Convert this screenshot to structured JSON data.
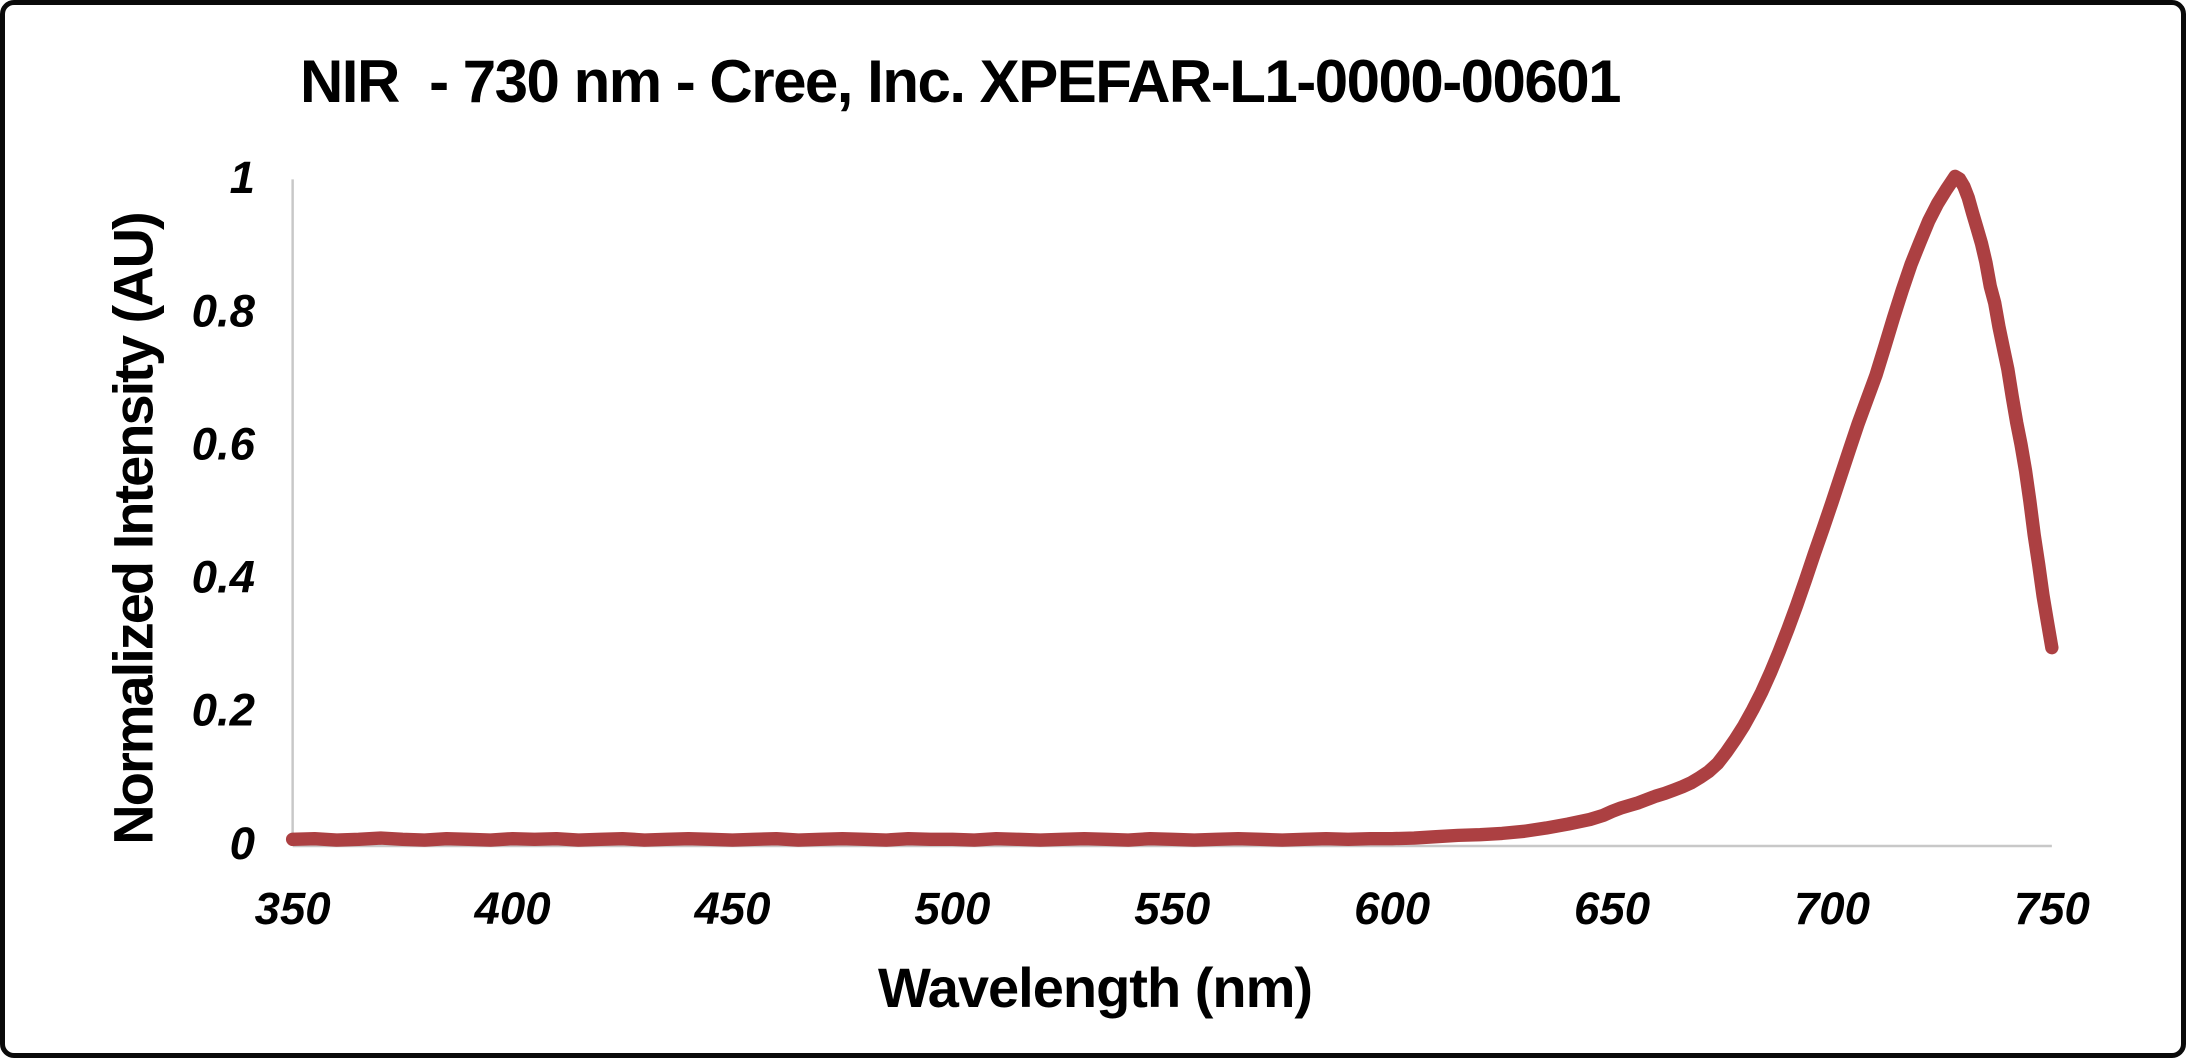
{
  "window": {
    "background": "#ffffff",
    "border_color": "#0a0a0a"
  },
  "chart_data": {
    "type": "line",
    "title": "NIR  - 730 nm - Cree, Inc. XPEFAR-L1-0000-00601",
    "xlabel": "Wavelength (nm)",
    "ylabel": "Normalized Intensity (AU)",
    "xlim": [
      350,
      750
    ],
    "ylim": [
      0,
      1
    ],
    "grid": false,
    "legend": false,
    "x_ticks": [
      350,
      400,
      450,
      500,
      550,
      600,
      650,
      700,
      750
    ],
    "x_tick_labels": [
      "350",
      "400",
      "450",
      "500",
      "550",
      "600",
      "650",
      "700",
      "750"
    ],
    "y_ticks": [
      0,
      0.2,
      0.4,
      0.6,
      0.8,
      1
    ],
    "y_tick_labels": [
      "0",
      "0.2",
      "0.4",
      "0.6",
      "0.8",
      "1"
    ],
    "line_color": "#AC4042",
    "axis_color": "#C8C8C8",
    "text_color": "#000000",
    "series": [
      {
        "points": [
          [
            350,
            0.004
          ],
          [
            355,
            0.005
          ],
          [
            360,
            0.003
          ],
          [
            365,
            0.004
          ],
          [
            370,
            0.006
          ],
          [
            375,
            0.004
          ],
          [
            380,
            0.003
          ],
          [
            385,
            0.005
          ],
          [
            390,
            0.004
          ],
          [
            395,
            0.003
          ],
          [
            400,
            0.005
          ],
          [
            405,
            0.004
          ],
          [
            410,
            0.005
          ],
          [
            415,
            0.003
          ],
          [
            420,
            0.004
          ],
          [
            425,
            0.005
          ],
          [
            430,
            0.003
          ],
          [
            435,
            0.004
          ],
          [
            440,
            0.005
          ],
          [
            445,
            0.004
          ],
          [
            450,
            0.003
          ],
          [
            455,
            0.004
          ],
          [
            460,
            0.005
          ],
          [
            465,
            0.003
          ],
          [
            470,
            0.004
          ],
          [
            475,
            0.005
          ],
          [
            480,
            0.004
          ],
          [
            485,
            0.003
          ],
          [
            490,
            0.005
          ],
          [
            495,
            0.004
          ],
          [
            500,
            0.004
          ],
          [
            505,
            0.003
          ],
          [
            510,
            0.005
          ],
          [
            515,
            0.004
          ],
          [
            520,
            0.003
          ],
          [
            525,
            0.004
          ],
          [
            530,
            0.005
          ],
          [
            535,
            0.004
          ],
          [
            540,
            0.003
          ],
          [
            545,
            0.005
          ],
          [
            550,
            0.004
          ],
          [
            555,
            0.003
          ],
          [
            560,
            0.004
          ],
          [
            565,
            0.005
          ],
          [
            570,
            0.004
          ],
          [
            575,
            0.003
          ],
          [
            580,
            0.004
          ],
          [
            585,
            0.005
          ],
          [
            590,
            0.004
          ],
          [
            595,
            0.005
          ],
          [
            600,
            0.005
          ],
          [
            605,
            0.006
          ],
          [
            610,
            0.008
          ],
          [
            615,
            0.01
          ],
          [
            620,
            0.011
          ],
          [
            625,
            0.013
          ],
          [
            630,
            0.016
          ],
          [
            635,
            0.021
          ],
          [
            640,
            0.027
          ],
          [
            645,
            0.034
          ],
          [
            648,
            0.04
          ],
          [
            650,
            0.046
          ],
          [
            652,
            0.051
          ],
          [
            654,
            0.055
          ],
          [
            656,
            0.059
          ],
          [
            658,
            0.064
          ],
          [
            660,
            0.069
          ],
          [
            662,
            0.073
          ],
          [
            664,
            0.078
          ],
          [
            666,
            0.083
          ],
          [
            668,
            0.089
          ],
          [
            670,
            0.097
          ],
          [
            672,
            0.106
          ],
          [
            674,
            0.118
          ],
          [
            676,
            0.135
          ],
          [
            678,
            0.154
          ],
          [
            680,
            0.175
          ],
          [
            682,
            0.199
          ],
          [
            684,
            0.225
          ],
          [
            686,
            0.254
          ],
          [
            688,
            0.286
          ],
          [
            690,
            0.32
          ],
          [
            692,
            0.356
          ],
          [
            694,
            0.394
          ],
          [
            696,
            0.433
          ],
          [
            698,
            0.471
          ],
          [
            700,
            0.51
          ],
          [
            702,
            0.55
          ],
          [
            704,
            0.59
          ],
          [
            706,
            0.629
          ],
          [
            708,
            0.665
          ],
          [
            710,
            0.701
          ],
          [
            712,
            0.744
          ],
          [
            714,
            0.788
          ],
          [
            716,
            0.829
          ],
          [
            718,
            0.868
          ],
          [
            720,
            0.901
          ],
          [
            722,
            0.933
          ],
          [
            724,
            0.959
          ],
          [
            726,
            0.98
          ],
          [
            727,
            0.99
          ],
          [
            728,
            1.0
          ],
          [
            729,
            0.996
          ],
          [
            730,
            0.985
          ],
          [
            731,
            0.968
          ],
          [
            732,
            0.944
          ],
          [
            733,
            0.922
          ],
          [
            734,
            0.899
          ],
          [
            735,
            0.871
          ],
          [
            736,
            0.835
          ],
          [
            737,
            0.81
          ],
          [
            738,
            0.773
          ],
          [
            739,
            0.741
          ],
          [
            740,
            0.71
          ],
          [
            741,
            0.669
          ],
          [
            742,
            0.63
          ],
          [
            743,
            0.597
          ],
          [
            744,
            0.558
          ],
          [
            745,
            0.512
          ],
          [
            746,
            0.461
          ],
          [
            747,
            0.417
          ],
          [
            748,
            0.37
          ],
          [
            749,
            0.33
          ],
          [
            750,
            0.292
          ]
        ]
      }
    ]
  }
}
